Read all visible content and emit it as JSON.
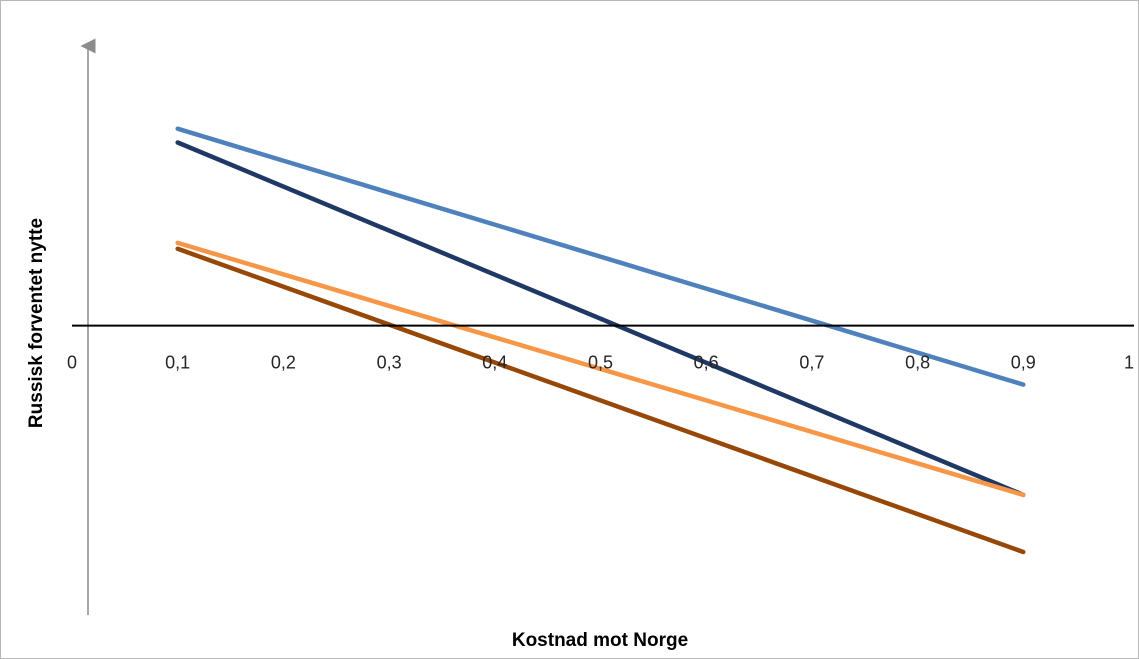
{
  "chart_data": {
    "type": "line",
    "title": "",
    "xlabel": "Kostnad mot Norge",
    "ylabel": "Russisk forventet nytte",
    "xlim": [
      0,
      1
    ],
    "ylim": [
      -1.47,
      1.42
    ],
    "x_ticks": [
      "0",
      "0,1",
      "0,2",
      "0,3",
      "0,4",
      "0,5",
      "0,6",
      "0,7",
      "0,8",
      "0,9",
      "1"
    ],
    "grid": false,
    "legend": "none",
    "series": [
      {
        "color": "#4F81BD",
        "x": [
          0.1,
          0.9
        ],
        "y": [
          1.0,
          -0.3
        ]
      },
      {
        "color": "#1F3864",
        "x": [
          0.1,
          0.9
        ],
        "y": [
          0.93,
          -0.86
        ]
      },
      {
        "color": "#F79646",
        "x": [
          0.1,
          0.9
        ],
        "y": [
          0.42,
          -0.86
        ]
      },
      {
        "color": "#974706",
        "x": [
          0.1,
          0.9
        ],
        "y": [
          0.39,
          -1.15
        ]
      }
    ]
  }
}
